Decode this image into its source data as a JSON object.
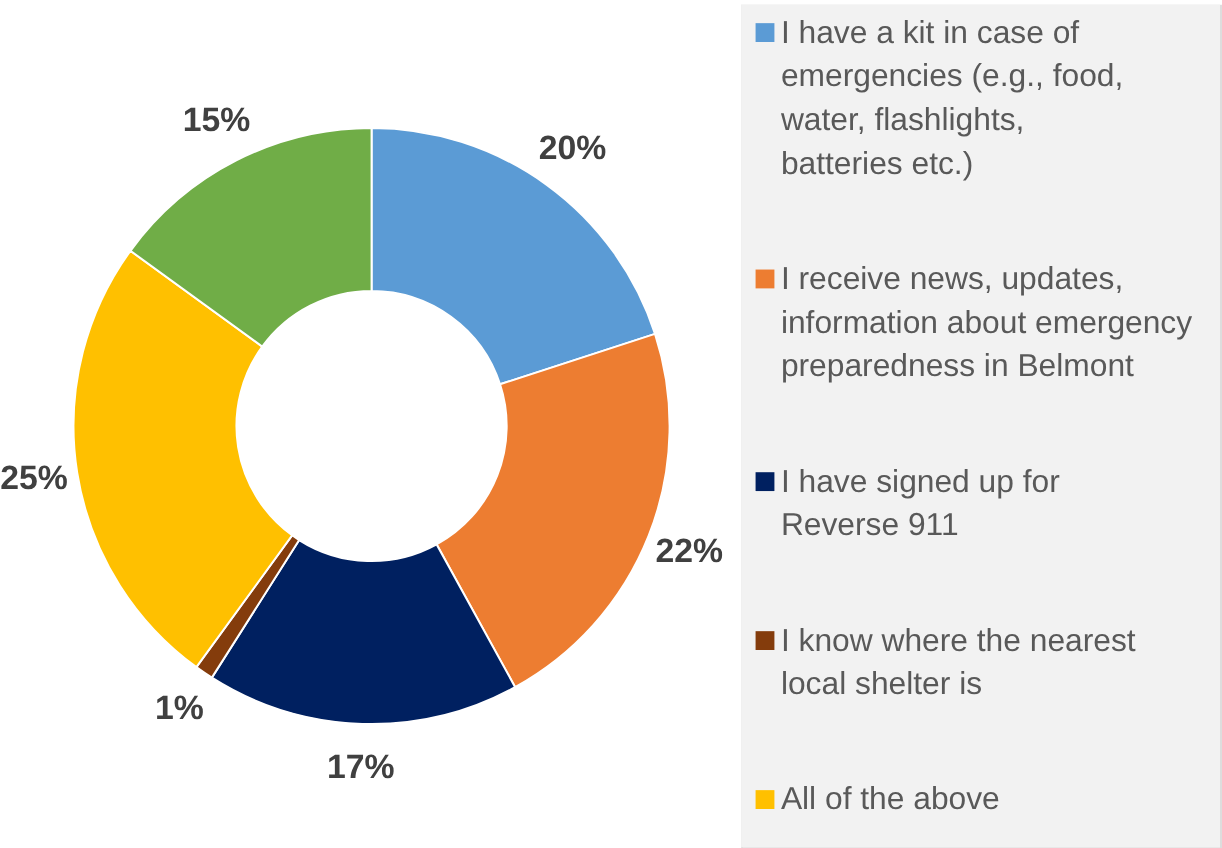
{
  "chart_data": {
    "type": "donut",
    "categories": [
      "I have a kit in case of emergencies (e.g., food, water, flashlights, batteries etc.)",
      "I receive news, updates, information about emergency preparedness in Belmont",
      "I have signed up for Reverse 911",
      "I know where the nearest local shelter is",
      "All of the above",
      null
    ],
    "values": [
      20,
      22,
      17,
      1,
      25,
      15
    ],
    "colors": [
      "#5b9bd5",
      "#ed7d31",
      "#002060",
      "#843c0c",
      "#ffc000",
      "#70ad47"
    ],
    "value_labels": [
      "20%",
      "22%",
      "17%",
      "1%",
      "25%",
      "15%"
    ],
    "legend": "right"
  }
}
